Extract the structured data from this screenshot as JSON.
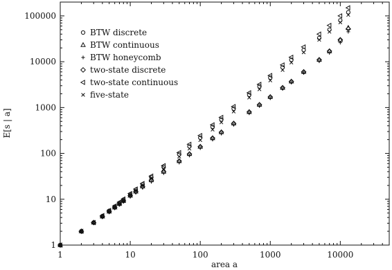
{
  "chart_data": {
    "type": "scatter",
    "xlabel": "area a",
    "ylabel": "E[s | a]",
    "xscale": "log",
    "yscale": "log",
    "xlim": [
      1,
      50000
    ],
    "ylim": [
      1,
      200000
    ],
    "grid": false,
    "legend_position": "top-left",
    "x_ticks": [
      {
        "value": 1,
        "label": "1"
      },
      {
        "value": 10,
        "label": "10"
      },
      {
        "value": 100,
        "label": "100"
      },
      {
        "value": 1000,
        "label": "1000"
      },
      {
        "value": 10000,
        "label": "10000"
      }
    ],
    "y_ticks": [
      {
        "value": 1,
        "label": "1"
      },
      {
        "value": 10,
        "label": "10"
      },
      {
        "value": 100,
        "label": "100"
      },
      {
        "value": 1000,
        "label": "1000"
      },
      {
        "value": 10000,
        "label": "10000"
      },
      {
        "value": 100000,
        "label": "100000"
      }
    ],
    "series": [
      {
        "name": "BTW discrete",
        "marker": "circle",
        "points": [
          [
            1,
            1
          ],
          [
            2,
            2
          ],
          [
            3,
            3.1
          ],
          [
            4,
            4.3
          ],
          [
            5,
            5.6
          ],
          [
            6,
            6.9
          ],
          [
            7,
            8.3
          ],
          [
            8,
            9.8
          ],
          [
            10,
            12.8
          ],
          [
            12,
            16
          ],
          [
            15,
            21
          ],
          [
            20,
            30
          ],
          [
            30,
            50
          ],
          [
            50,
            95
          ],
          [
            70,
            142
          ],
          [
            100,
            220
          ],
          [
            150,
            380
          ],
          [
            200,
            550
          ],
          [
            300,
            950
          ],
          [
            500,
            1900
          ],
          [
            700,
            2900
          ],
          [
            1000,
            4500
          ],
          [
            1500,
            7500
          ],
          [
            2000,
            11000
          ],
          [
            3000,
            18000
          ],
          [
            5000,
            33000
          ],
          [
            7000,
            50000
          ],
          [
            10000,
            80000
          ],
          [
            13000,
            120000
          ]
        ]
      },
      {
        "name": "BTW continuous",
        "marker": "triangle-up",
        "points": [
          [
            1,
            1
          ],
          [
            2,
            2
          ],
          [
            3,
            3.1
          ],
          [
            4,
            4.2
          ],
          [
            5,
            5.4
          ],
          [
            6,
            6.6
          ],
          [
            7,
            7.9
          ],
          [
            8,
            9.2
          ],
          [
            10,
            12
          ],
          [
            12,
            14.7
          ],
          [
            15,
            19
          ],
          [
            20,
            26
          ],
          [
            30,
            40
          ],
          [
            50,
            68
          ],
          [
            70,
            97
          ],
          [
            100,
            140
          ],
          [
            150,
            215
          ],
          [
            200,
            290
          ],
          [
            300,
            450
          ],
          [
            500,
            800
          ],
          [
            700,
            1150
          ],
          [
            1000,
            1700
          ],
          [
            1500,
            2700
          ],
          [
            2000,
            3700
          ],
          [
            3000,
            6000
          ],
          [
            5000,
            11000
          ],
          [
            7000,
            17000
          ],
          [
            10000,
            30000
          ],
          [
            13000,
            55000
          ]
        ]
      },
      {
        "name": "BTW honeycomb",
        "marker": "plus",
        "points": [
          [
            1,
            1
          ],
          [
            2,
            2
          ],
          [
            3,
            3
          ],
          [
            4,
            4.1
          ],
          [
            5,
            5.2
          ],
          [
            6,
            6.4
          ],
          [
            7,
            7.6
          ],
          [
            8,
            8.8
          ],
          [
            10,
            11.3
          ],
          [
            12,
            13.8
          ],
          [
            15,
            17.7
          ],
          [
            20,
            24
          ],
          [
            30,
            37
          ],
          [
            50,
            63
          ],
          [
            70,
            90
          ],
          [
            100,
            130
          ],
          [
            150,
            200
          ],
          [
            200,
            270
          ],
          [
            300,
            420
          ],
          [
            500,
            750
          ],
          [
            700,
            1080
          ],
          [
            1000,
            1600
          ],
          [
            1500,
            2550
          ],
          [
            2000,
            3500
          ],
          [
            3000,
            5700
          ],
          [
            5000,
            10200
          ],
          [
            7000,
            15500
          ],
          [
            10000,
            26000
          ],
          [
            13000,
            45000
          ]
        ]
      },
      {
        "name": "two-state discrete",
        "marker": "diamond",
        "points": [
          [
            1,
            1
          ],
          [
            2,
            2
          ],
          [
            3,
            3.1
          ],
          [
            4,
            4.2
          ],
          [
            5,
            5.4
          ],
          [
            6,
            6.6
          ],
          [
            7,
            7.9
          ],
          [
            8,
            9.2
          ],
          [
            10,
            12
          ],
          [
            12,
            14.7
          ],
          [
            15,
            19
          ],
          [
            20,
            26
          ],
          [
            30,
            40
          ],
          [
            50,
            68
          ],
          [
            70,
            97
          ],
          [
            100,
            140
          ],
          [
            150,
            215
          ],
          [
            200,
            290
          ],
          [
            300,
            450
          ],
          [
            500,
            800
          ],
          [
            700,
            1150
          ],
          [
            1000,
            1700
          ],
          [
            1500,
            2700
          ],
          [
            2000,
            3700
          ],
          [
            3000,
            6000
          ],
          [
            5000,
            11000
          ],
          [
            7000,
            17000
          ],
          [
            10000,
            30000
          ],
          [
            13000,
            52000
          ]
        ]
      },
      {
        "name": "two-state continuous",
        "marker": "triangle-left",
        "points": [
          [
            1,
            1
          ],
          [
            2,
            2
          ],
          [
            3,
            3.1
          ],
          [
            4,
            4.4
          ],
          [
            5,
            5.7
          ],
          [
            6,
            7.1
          ],
          [
            7,
            8.6
          ],
          [
            8,
            10.1
          ],
          [
            10,
            13.3
          ],
          [
            12,
            16.7
          ],
          [
            15,
            22
          ],
          [
            20,
            32
          ],
          [
            30,
            54
          ],
          [
            50,
            104
          ],
          [
            70,
            158
          ],
          [
            100,
            245
          ],
          [
            150,
            420
          ],
          [
            200,
            610
          ],
          [
            300,
            1050
          ],
          [
            500,
            2100
          ],
          [
            700,
            3200
          ],
          [
            1000,
            5000
          ],
          [
            1500,
            8500
          ],
          [
            2000,
            12500
          ],
          [
            3000,
            21000
          ],
          [
            5000,
            40000
          ],
          [
            7000,
            62000
          ],
          [
            10000,
            100000
          ],
          [
            13000,
            150000
          ]
        ]
      },
      {
        "name": "five-state",
        "marker": "cross",
        "points": [
          [
            1,
            1
          ],
          [
            2,
            2
          ],
          [
            3,
            3.1
          ],
          [
            4,
            4.2
          ],
          [
            5,
            5.5
          ],
          [
            6,
            6.8
          ],
          [
            7,
            8.1
          ],
          [
            8,
            9.5
          ],
          [
            10,
            12.4
          ],
          [
            12,
            15.4
          ],
          [
            15,
            20
          ],
          [
            20,
            28
          ],
          [
            30,
            46
          ],
          [
            50,
            85
          ],
          [
            70,
            127
          ],
          [
            100,
            195
          ],
          [
            150,
            330
          ],
          [
            200,
            475
          ],
          [
            300,
            820
          ],
          [
            500,
            1650
          ],
          [
            700,
            2500
          ],
          [
            1000,
            3900
          ],
          [
            1500,
            6600
          ],
          [
            2000,
            9600
          ],
          [
            3000,
            16000
          ],
          [
            5000,
            30000
          ],
          [
            7000,
            45000
          ],
          [
            10000,
            72000
          ],
          [
            13000,
            105000
          ]
        ]
      }
    ]
  }
}
